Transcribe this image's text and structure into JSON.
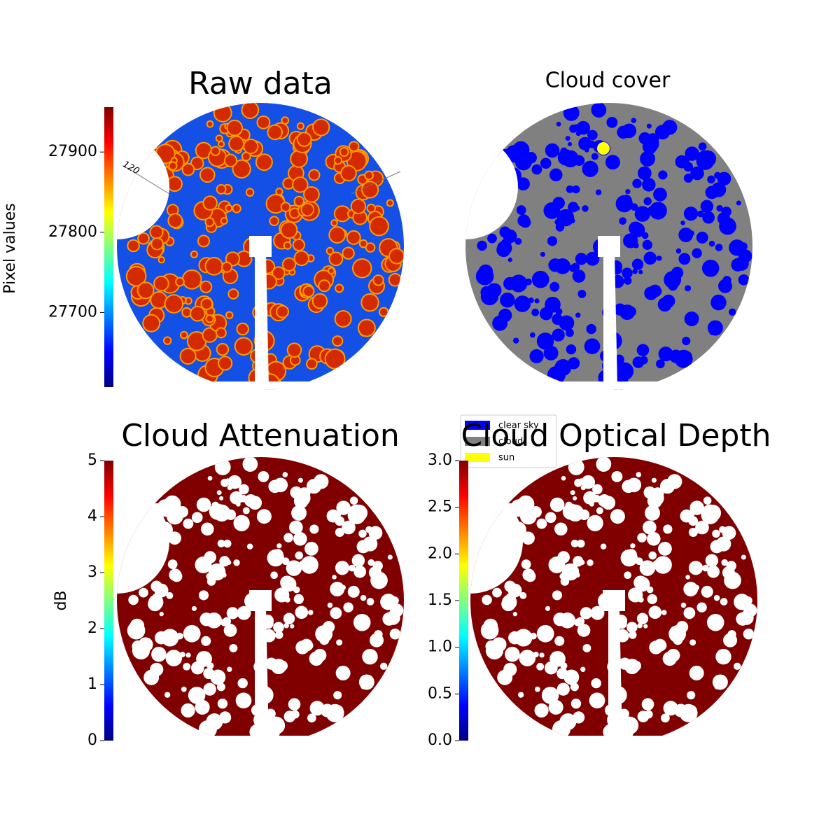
{
  "chart_data": [
    {
      "type": "image",
      "title": "Raw data",
      "colormap": "jet",
      "ylabel": "Pixel values",
      "ylim": [
        27607,
        27956
      ],
      "yticks": [
        27700,
        27800,
        27900
      ],
      "annotations": [
        "120"
      ]
    },
    {
      "type": "image",
      "title": "Cloud cover",
      "legend": [
        {
          "name": "clear sky",
          "color": "#0000ff"
        },
        {
          "name": "cloud",
          "color": "#808080"
        },
        {
          "name": "sun",
          "color": "#ffff00"
        }
      ]
    },
    {
      "type": "image",
      "title": "Cloud Attenuation",
      "colormap": "jet",
      "ylabel": "dB",
      "ylim": [
        0,
        5
      ],
      "yticks": [
        0,
        1,
        2,
        3,
        4,
        5
      ]
    },
    {
      "type": "image",
      "title": "Cloud Optical Depth",
      "colormap": "jet",
      "ylim": [
        0,
        3
      ],
      "yticks": [
        {
          "value": 0,
          "label": "0.0"
        },
        {
          "value": 0.5,
          "label": "0.5"
        },
        {
          "value": 1,
          "label": "1.0"
        },
        {
          "value": 1.5,
          "label": "1.5"
        },
        {
          "value": 2,
          "label": "2.0"
        },
        {
          "value": 2.5,
          "label": "2.5"
        },
        {
          "value": 3,
          "label": "3.0"
        }
      ]
    }
  ]
}
